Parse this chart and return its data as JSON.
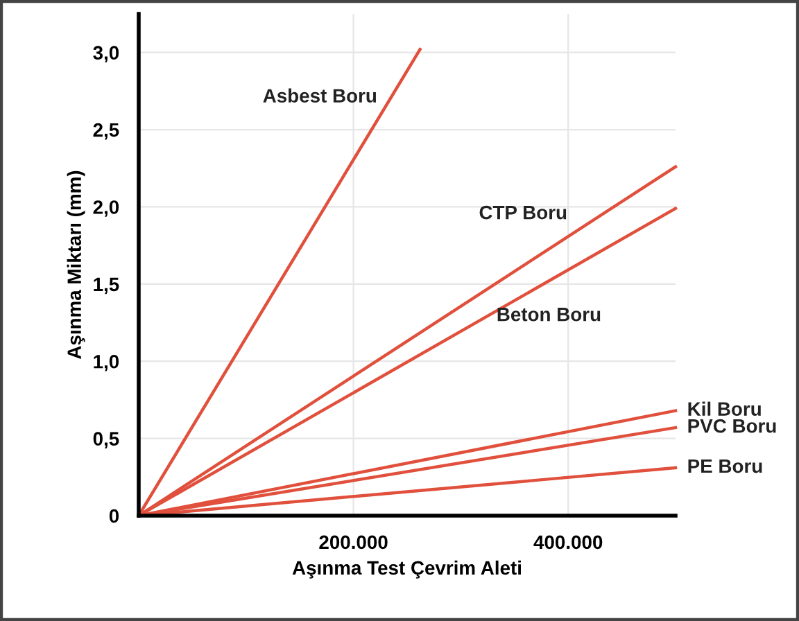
{
  "chart_data": {
    "type": "line",
    "xlabel": "Aşınma Test Çevrim Aleti",
    "ylabel": "Aşınma Miktarı (mm)",
    "xlim": [
      0,
      500000
    ],
    "ylim": [
      0,
      3.25
    ],
    "xticks": [
      {
        "value": 200000,
        "label": "200.000"
      },
      {
        "value": 400000,
        "label": "400.000"
      }
    ],
    "yticks": [
      0,
      {
        "value": 0.5,
        "label": "0,5"
      },
      {
        "value": 1.0,
        "label": "1,0"
      },
      {
        "value": 1.5,
        "label": "1,5"
      },
      {
        "value": 2.0,
        "label": "2,0"
      },
      {
        "value": 2.5,
        "label": "2,5"
      },
      {
        "value": 3.0,
        "label": "3,0"
      }
    ],
    "grid": true,
    "legend": false,
    "marker": "none",
    "line_style": "solid",
    "series": [
      {
        "name": "Asbest Boru",
        "color": "#e0503c",
        "x": [
          0,
          262000
        ],
        "values": [
          0,
          3.02
        ]
      },
      {
        "name": "CTP Boru",
        "color": "#e0503c",
        "x": [
          0,
          500000
        ],
        "values": [
          0,
          2.26
        ]
      },
      {
        "name": "Beton Boru",
        "color": "#e0503c",
        "x": [
          0,
          500000
        ],
        "values": [
          0,
          1.99
        ]
      },
      {
        "name": "Kil Boru",
        "color": "#e0503c",
        "x": [
          0,
          500000
        ],
        "values": [
          0,
          0.68
        ]
      },
      {
        "name": "PVC Boru",
        "color": "#e0503c",
        "x": [
          0,
          500000
        ],
        "values": [
          0,
          0.57
        ]
      },
      {
        "name": "PE Boru",
        "color": "#e0503c",
        "x": [
          0,
          500000
        ],
        "values": [
          0,
          0.31
        ]
      }
    ]
  }
}
